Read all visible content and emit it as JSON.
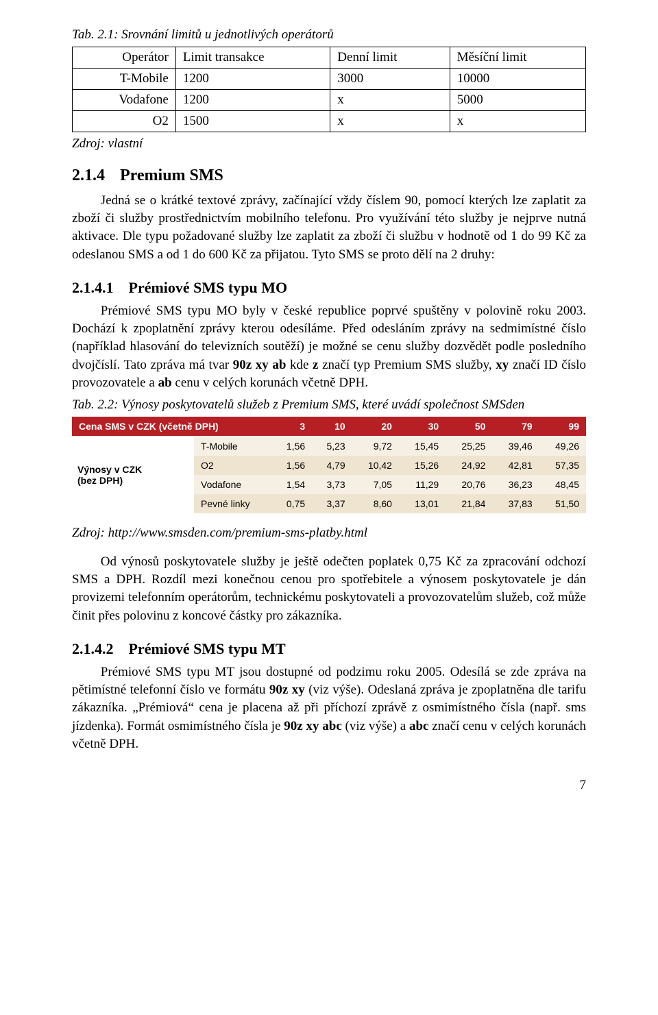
{
  "table1": {
    "caption": "Tab. 2.1: Srovnání limitů u jednotlivých operátorů",
    "headers": [
      "Operátor",
      "Limit transakce",
      "Denní limit",
      "Měsíční limit"
    ],
    "rows": [
      [
        "T-Mobile",
        "1200",
        "3000",
        "10000"
      ],
      [
        "Vodafone",
        "1200",
        "x",
        "5000"
      ],
      [
        "O2",
        "1500",
        "x",
        "x"
      ]
    ],
    "source": "Zdroj: vlastní"
  },
  "sec_2_1_4": {
    "num": "2.1.4",
    "title": "Premium SMS",
    "p1": "Jedná se o krátké textové zprávy, začínající vždy číslem 90, pomocí kterých lze zaplatit za zboží či služby prostřednictvím mobilního telefonu. Pro využívání této služby je nejprve nutná aktivace. Dle typu požadované služby lze zaplatit za zboží či službu v hodnotě od 1 do 99 Kč za odeslanou SMS a od 1 do 600 Kč za přijatou. Tyto SMS se proto dělí na 2 druhy:"
  },
  "sec_2_1_4_1": {
    "num": "2.1.4.1",
    "title": "Prémiové SMS typu MO",
    "p1_a": "Prémiové SMS typu MO byly v české republice poprvé spuštěny v polovině roku 2003. Dochází k zpoplatnění zprávy kterou odesíláme. Před odesláním zprávy na sedmimístné číslo (například hlasování do televizních soutěží) je možné se cenu služby dozvědět podle posledního dvojčíslí. Tato zpráva má tvar ",
    "bold1": "90z xy ab",
    "p1_b": " kde ",
    "bold2": "z",
    "p1_c": " značí typ Premium SMS služby, ",
    "bold3": "xy",
    "p1_d": " značí ID číslo provozovatele a ",
    "bold4": "ab",
    "p1_e": " cenu v celých korunách včetně DPH."
  },
  "table2": {
    "caption": "Tab. 2.2: Výnosy poskytovatelů služeb z Premium SMS, které uvádí společnost SMSden",
    "header_colors": {
      "bg": "#b62025",
      "fg": "#ffffff"
    },
    "row_colors": {
      "odd": "#f6efe3",
      "even": "#efe4d0",
      "label_bg": "#ffffff"
    },
    "left_header": "Cena SMS v CZK (včetně DPH)",
    "row_label_line1": "Výnosy v CZK",
    "row_label_line2": "(bez DPH)",
    "price_cols": [
      "3",
      "10",
      "20",
      "30",
      "50",
      "79",
      "99"
    ],
    "rows": [
      {
        "label": "T-Mobile",
        "vals": [
          "1,56",
          "5,23",
          "9,72",
          "15,45",
          "25,25",
          "39,46",
          "49,26"
        ]
      },
      {
        "label": "O2",
        "vals": [
          "1,56",
          "4,79",
          "10,42",
          "15,26",
          "24,92",
          "42,81",
          "57,35"
        ]
      },
      {
        "label": "Vodafone",
        "vals": [
          "1,54",
          "3,73",
          "7,05",
          "11,29",
          "20,76",
          "36,23",
          "48,45"
        ]
      },
      {
        "label": "Pevné linky",
        "vals": [
          "0,75",
          "3,37",
          "8,60",
          "13,01",
          "21,84",
          "37,83",
          "51,50"
        ]
      }
    ],
    "source": "Zdroj: http://www.smsden.com/premium-sms-platby.html"
  },
  "para_after_table2": "Od výnosů poskytovatele služby je ještě odečten poplatek 0,75 Kč za zpracování odchozí SMS a DPH. Rozdíl mezi konečnou cenou pro spotřebitele a výnosem poskytovatele je dán provizemi telefonním operátorům, technickému poskytovateli a provozovatelům služeb, což může činit přes polovinu z koncové částky pro zákazníka.",
  "sec_2_1_4_2": {
    "num": "2.1.4.2",
    "title": "Prémiové SMS typu MT",
    "p1_a": "Prémiové SMS typu MT jsou dostupné od podzimu roku 2005. Odesílá se zde zpráva na pětimístné telefonní číslo ve formátu ",
    "bold1": "90z xy",
    "p1_b": " (viz výše). Odeslaná zpráva je zpoplatněna dle tarifu zákazníka. „Prémiová“ cena je placena až při příchozí zprávě z osmimístného čísla (např. sms jízdenka). Formát osmimístného čísla je ",
    "bold2": "90z xy abc",
    "p1_c": " (viz výše) a ",
    "bold3": "abc",
    "p1_d": " značí cenu v celých korunách včetně DPH."
  },
  "page_number": "7"
}
